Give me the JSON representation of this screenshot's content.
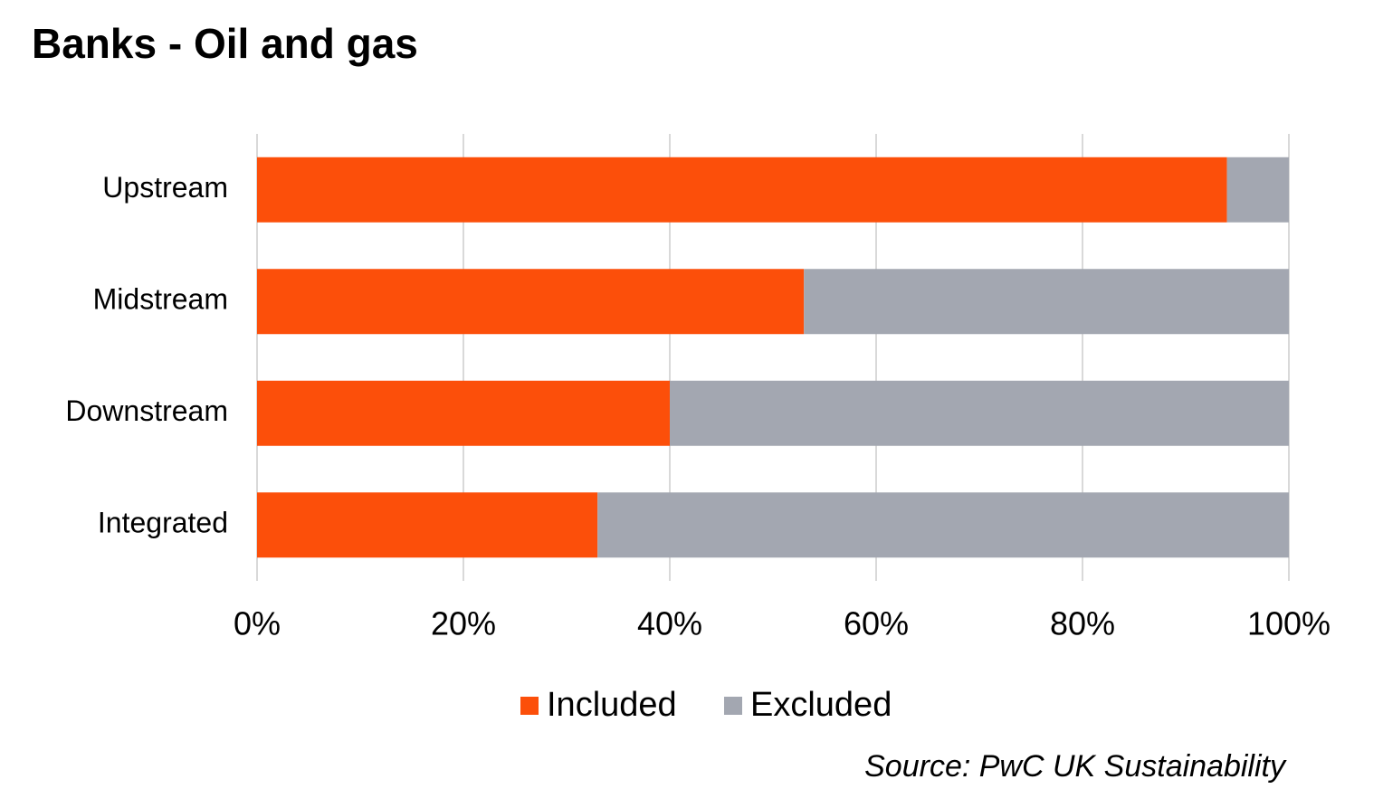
{
  "chart_data": {
    "type": "stacked-bar-horizontal",
    "title": "Banks - Oil and gas",
    "categories": [
      "Upstream",
      "Midstream",
      "Downstream",
      "Integrated"
    ],
    "series": [
      {
        "name": "Included",
        "color": "#fc4f0a",
        "values": [
          94,
          53,
          40,
          33
        ]
      },
      {
        "name": "Excluded",
        "color": "#a3a7b1",
        "values": [
          6,
          47,
          60,
          67
        ]
      }
    ],
    "xlim": [
      0,
      100
    ],
    "xticks": [
      {
        "value": 0,
        "label": "0%"
      },
      {
        "value": 20,
        "label": "20%"
      },
      {
        "value": 40,
        "label": "40%"
      },
      {
        "value": 60,
        "label": "60%"
      },
      {
        "value": 80,
        "label": "80%"
      },
      {
        "value": 100,
        "label": "100%"
      }
    ],
    "grid": true,
    "legend": "bottom",
    "source": "Source: PwC UK Sustainability"
  }
}
